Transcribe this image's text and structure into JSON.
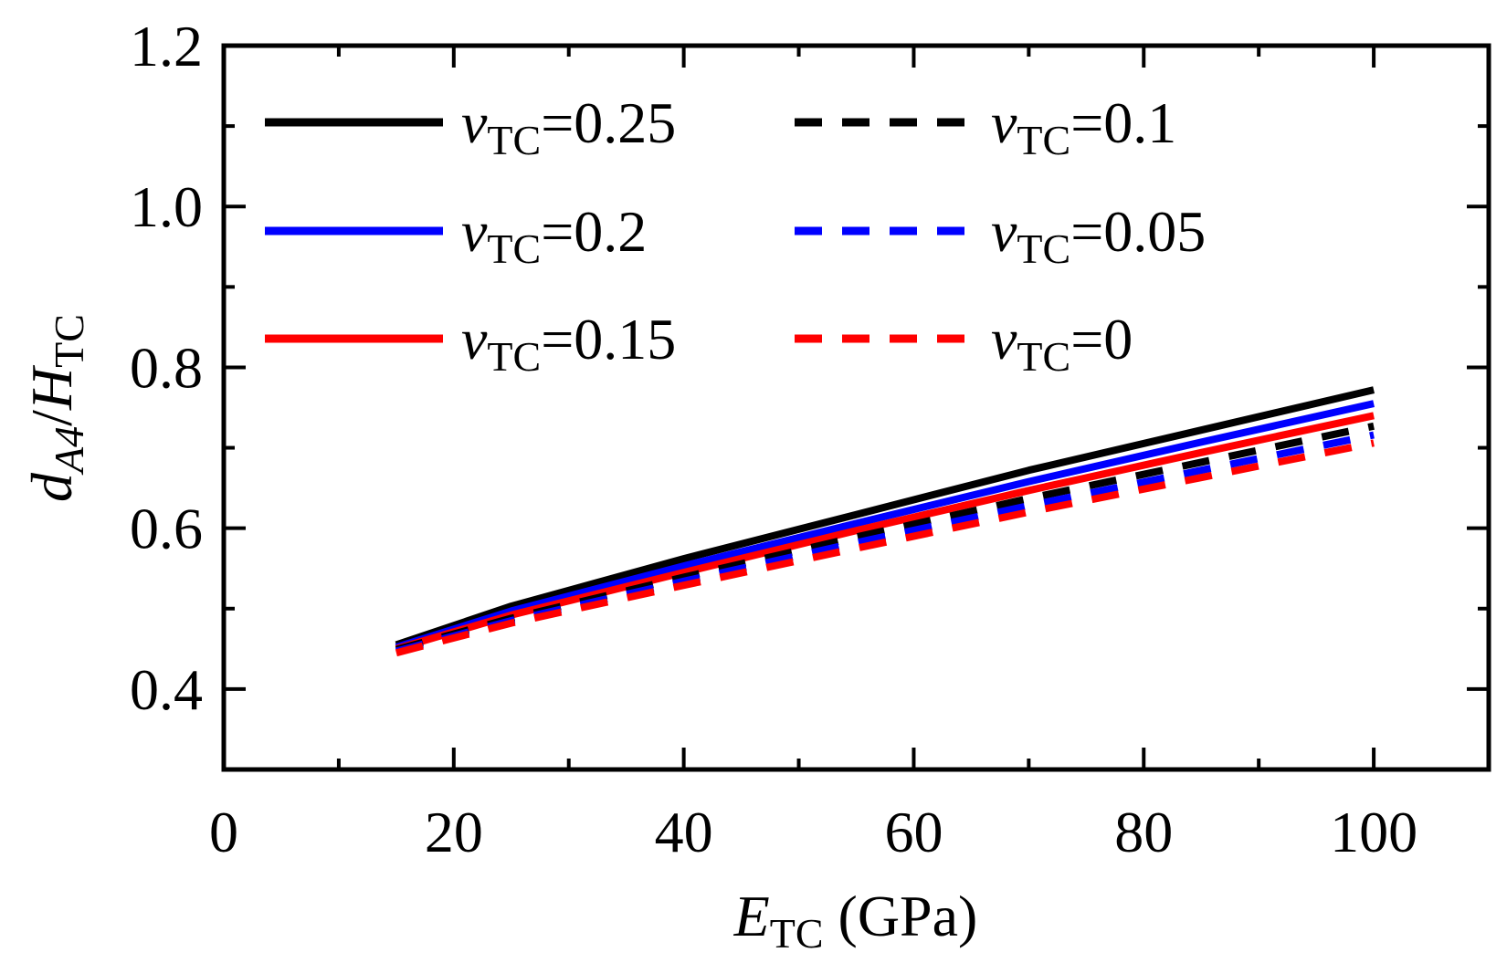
{
  "chart_data": {
    "type": "line",
    "xlabel": {
      "main": "E",
      "sub": "TC",
      "rest": " (GPa)"
    },
    "ylabel": {
      "d": "d",
      "d_sub": "A4",
      "slash": "/",
      "H": "H",
      "H_sub": "TC"
    },
    "xlim": [
      0,
      110
    ],
    "ylim": [
      0.3,
      1.2
    ],
    "x_ticks": [
      0,
      20,
      40,
      60,
      80,
      100
    ],
    "x_tick_labels": [
      "0",
      "20",
      "40",
      "60",
      "80",
      "100"
    ],
    "x_minor_ticks": [
      10,
      30,
      50,
      70,
      90,
      110
    ],
    "y_ticks": [
      0.4,
      0.6,
      0.8,
      1.0,
      1.2
    ],
    "y_tick_labels": [
      "0.4",
      "0.6",
      "0.8",
      "1.0",
      "1.2"
    ],
    "y_minor_ticks": [
      0.5,
      0.7,
      0.9,
      1.1
    ],
    "x": [
      15,
      25,
      40,
      55,
      70,
      85,
      100
    ],
    "series": [
      {
        "name": "vTC=0.25",
        "symbol": "v",
        "sub": "TC",
        "eq": "=0.25",
        "color": "#000000",
        "dash": "solid",
        "values": [
          0.455,
          0.503,
          0.562,
          0.617,
          0.672,
          0.722,
          0.772
        ]
      },
      {
        "name": "vTC=0.2",
        "symbol": "v",
        "sub": "TC",
        "eq": "=0.2",
        "color": "#0000ff",
        "dash": "solid",
        "values": [
          0.452,
          0.497,
          0.553,
          0.606,
          0.658,
          0.707,
          0.755
        ]
      },
      {
        "name": "vTC=0.15",
        "symbol": "v",
        "sub": "TC",
        "eq": "=0.15",
        "color": "#ff0000",
        "dash": "solid",
        "values": [
          0.45,
          0.492,
          0.545,
          0.597,
          0.647,
          0.694,
          0.74
        ]
      },
      {
        "name": "vTC=0.1",
        "symbol": "v",
        "sub": "TC",
        "eq": "=0.1",
        "color": "#000000",
        "dash": "dashed",
        "values": [
          0.449,
          0.488,
          0.539,
          0.589,
          0.637,
          0.682,
          0.727
        ]
      },
      {
        "name": "vTC=0.05",
        "symbol": "v",
        "sub": "TC",
        "eq": "=0.05",
        "color": "#0000ff",
        "dash": "dashed",
        "values": [
          0.447,
          0.485,
          0.534,
          0.582,
          0.628,
          0.672,
          0.716
        ]
      },
      {
        "name": "vTC=0",
        "symbol": "v",
        "sub": "TC",
        "eq": "=0",
        "color": "#ff0000",
        "dash": "dashed",
        "values": [
          0.445,
          0.482,
          0.529,
          0.575,
          0.62,
          0.663,
          0.706
        ]
      }
    ],
    "legend": {
      "placement": "top-left",
      "columns": 2
    },
    "grid": false
  }
}
